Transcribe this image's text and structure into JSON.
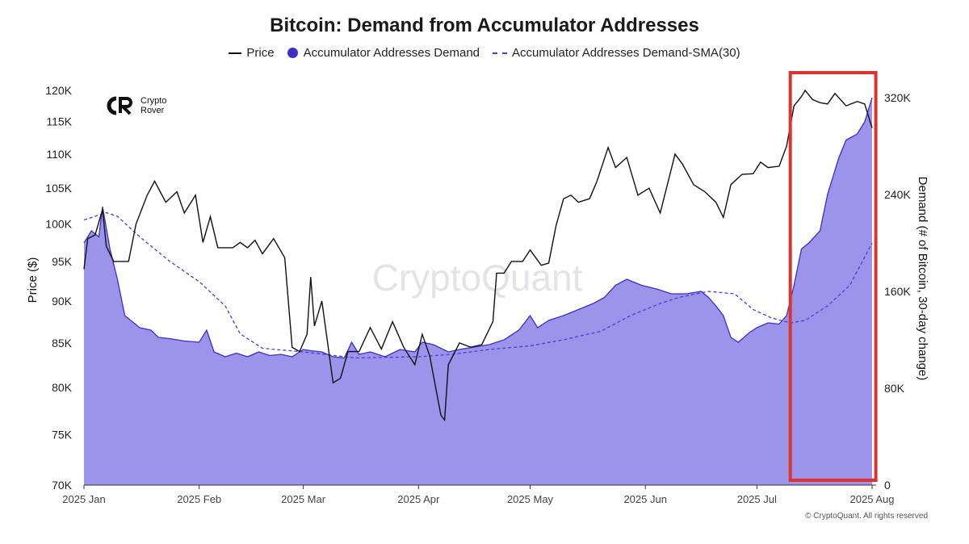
{
  "title": "Bitcoin: Demand from Accumulator Addresses",
  "logo": {
    "line1": "Crypto",
    "line2": "Rover",
    "icon": "cr-logo-icon"
  },
  "watermark": "CryptoQuant",
  "copyright": "© CryptoQuant. All rights reserved",
  "colors": {
    "price": "#111111",
    "demand_fill": "#9c93ea",
    "demand_line": "#3d2fc8",
    "sma": "#4a3fd0",
    "highlight": "#e0322b"
  },
  "chart_data": {
    "type": "area",
    "title": "Bitcoin: Demand from Accumulator Addresses",
    "legend_position": "top-center",
    "series": [
      {
        "name": "Price",
        "style": "line",
        "axis": "left"
      },
      {
        "name": "Accumulator Addresses Demand",
        "style": "area",
        "axis": "right"
      },
      {
        "name": "Accumulator Addresses Demand-SMA(30)",
        "style": "dashed line",
        "axis": "right"
      }
    ],
    "y_left": {
      "label": "Price ($)",
      "scale": "log",
      "range": [
        70000,
        123000
      ],
      "ticks": [
        "120K",
        "115K",
        "110K",
        "105K",
        "100K",
        "95K",
        "90K",
        "85K",
        "80K",
        "75K",
        "70K"
      ],
      "tick_values": [
        120000,
        115000,
        110000,
        105000,
        100000,
        95000,
        90000,
        85000,
        80000,
        75000,
        70000
      ]
    },
    "y_right": {
      "label": "Demand (# of Bitcoin, 30-day change)",
      "range": [
        0,
        320000
      ],
      "ticks": [
        "320K",
        "240K",
        "160K",
        "80K",
        "0"
      ],
      "tick_values": [
        320000,
        240000,
        160000,
        80000,
        0
      ]
    },
    "x_axis": {
      "range": [
        "2025-01-01",
        "2025-08-01"
      ],
      "ticks": [
        "2025 Jan",
        "2025 Feb",
        "2025 Mar",
        "2025 Apr",
        "2025 May",
        "2025 Jun",
        "2025 Jul",
        "2025 Aug"
      ],
      "tick_dates": [
        "2025-01-01",
        "2025-02-01",
        "2025-03-01",
        "2025-04-01",
        "2025-05-01",
        "2025-06-01",
        "2025-07-01",
        "2025-08-01"
      ]
    },
    "grid": false,
    "annotation": {
      "type": "highlight box",
      "date_range": [
        "2025-07-10",
        "2025-08-02"
      ]
    },
    "price": [
      [
        "2025-01-01",
        94000
      ],
      [
        "2025-01-02",
        98000
      ],
      [
        "2025-01-04",
        98500
      ],
      [
        "2025-01-06",
        102000
      ],
      [
        "2025-01-07",
        97000
      ],
      [
        "2025-01-09",
        95000
      ],
      [
        "2025-01-13",
        95000
      ],
      [
        "2025-01-15",
        100000
      ],
      [
        "2025-01-18",
        104000
      ],
      [
        "2025-01-20",
        106000
      ],
      [
        "2025-01-23",
        103000
      ],
      [
        "2025-01-26",
        104500
      ],
      [
        "2025-01-28",
        101500
      ],
      [
        "2025-01-31",
        104000
      ],
      [
        "2025-02-02",
        97500
      ],
      [
        "2025-02-04",
        101000
      ],
      [
        "2025-02-06",
        96800
      ],
      [
        "2025-02-10",
        96800
      ],
      [
        "2025-02-12",
        97500
      ],
      [
        "2025-02-14",
        96800
      ],
      [
        "2025-02-16",
        97800
      ],
      [
        "2025-02-18",
        96000
      ],
      [
        "2025-02-21",
        98000
      ],
      [
        "2025-02-24",
        95500
      ],
      [
        "2025-02-26",
        84500
      ],
      [
        "2025-02-28",
        84000
      ],
      [
        "2025-03-02",
        86000
      ],
      [
        "2025-03-03",
        93000
      ],
      [
        "2025-03-04",
        87000
      ],
      [
        "2025-03-06",
        90000
      ],
      [
        "2025-03-09",
        80500
      ],
      [
        "2025-03-11",
        81000
      ],
      [
        "2025-03-13",
        84000
      ],
      [
        "2025-03-16",
        84000
      ],
      [
        "2025-03-19",
        86800
      ],
      [
        "2025-03-22",
        84300
      ],
      [
        "2025-03-25",
        87500
      ],
      [
        "2025-03-28",
        84500
      ],
      [
        "2025-03-31",
        82500
      ],
      [
        "2025-04-02",
        86000
      ],
      [
        "2025-04-04",
        83500
      ],
      [
        "2025-04-07",
        77000
      ],
      [
        "2025-04-08",
        76500
      ],
      [
        "2025-04-09",
        82500
      ],
      [
        "2025-04-12",
        85000
      ],
      [
        "2025-04-15",
        84500
      ],
      [
        "2025-04-18",
        84800
      ],
      [
        "2025-04-21",
        87500
      ],
      [
        "2025-04-22",
        93500
      ],
      [
        "2025-04-24",
        93500
      ],
      [
        "2025-04-26",
        95000
      ],
      [
        "2025-04-29",
        95000
      ],
      [
        "2025-05-01",
        96500
      ],
      [
        "2025-05-04",
        94500
      ],
      [
        "2025-05-06",
        94800
      ],
      [
        "2025-05-08",
        99800
      ],
      [
        "2025-05-10",
        103500
      ],
      [
        "2025-05-12",
        104000
      ],
      [
        "2025-05-14",
        103000
      ],
      [
        "2025-05-17",
        103500
      ],
      [
        "2025-05-19",
        106000
      ],
      [
        "2025-05-22",
        111000
      ],
      [
        "2025-05-24",
        108000
      ],
      [
        "2025-05-27",
        109500
      ],
      [
        "2025-05-30",
        104000
      ],
      [
        "2025-06-02",
        105000
      ],
      [
        "2025-06-05",
        101500
      ],
      [
        "2025-06-09",
        110000
      ],
      [
        "2025-06-11",
        108500
      ],
      [
        "2025-06-14",
        105500
      ],
      [
        "2025-06-17",
        104500
      ],
      [
        "2025-06-20",
        103000
      ],
      [
        "2025-06-22",
        100900
      ],
      [
        "2025-06-24",
        105500
      ],
      [
        "2025-06-27",
        107000
      ],
      [
        "2025-06-30",
        107100
      ],
      [
        "2025-07-02",
        108800
      ],
      [
        "2025-07-04",
        108000
      ],
      [
        "2025-07-07",
        108200
      ],
      [
        "2025-07-09",
        111200
      ],
      [
        "2025-07-11",
        117500
      ],
      [
        "2025-07-13",
        119000
      ],
      [
        "2025-07-14",
        120000
      ],
      [
        "2025-07-16",
        118500
      ],
      [
        "2025-07-18",
        118000
      ],
      [
        "2025-07-20",
        117800
      ],
      [
        "2025-07-22",
        119500
      ],
      [
        "2025-07-25",
        117500
      ],
      [
        "2025-07-28",
        118200
      ],
      [
        "2025-07-30",
        117800
      ],
      [
        "2025-08-01",
        114000
      ]
    ],
    "demand": [
      [
        "2025-01-01",
        200000
      ],
      [
        "2025-01-03",
        210000
      ],
      [
        "2025-01-05",
        205000
      ],
      [
        "2025-01-06",
        230000
      ],
      [
        "2025-01-08",
        195000
      ],
      [
        "2025-01-10",
        170000
      ],
      [
        "2025-01-12",
        140000
      ],
      [
        "2025-01-14",
        135000
      ],
      [
        "2025-01-16",
        130000
      ],
      [
        "2025-01-19",
        128000
      ],
      [
        "2025-01-21",
        122000
      ],
      [
        "2025-01-24",
        121000
      ],
      [
        "2025-01-28",
        119000
      ],
      [
        "2025-02-01",
        118000
      ],
      [
        "2025-02-03",
        128000
      ],
      [
        "2025-02-05",
        110000
      ],
      [
        "2025-02-08",
        106000
      ],
      [
        "2025-02-11",
        109000
      ],
      [
        "2025-02-14",
        106000
      ],
      [
        "2025-02-17",
        110000
      ],
      [
        "2025-02-20",
        107000
      ],
      [
        "2025-02-23",
        108000
      ],
      [
        "2025-02-26",
        106000
      ],
      [
        "2025-03-01",
        112000
      ],
      [
        "2025-03-03",
        111000
      ],
      [
        "2025-03-06",
        110000
      ],
      [
        "2025-03-09",
        106000
      ],
      [
        "2025-03-12",
        105000
      ],
      [
        "2025-03-14",
        118000
      ],
      [
        "2025-03-16",
        108000
      ],
      [
        "2025-03-19",
        110000
      ],
      [
        "2025-03-23",
        106000
      ],
      [
        "2025-03-27",
        112000
      ],
      [
        "2025-03-31",
        110000
      ],
      [
        "2025-04-02",
        118000
      ],
      [
        "2025-04-05",
        116000
      ],
      [
        "2025-04-09",
        110000
      ],
      [
        "2025-04-12",
        112000
      ],
      [
        "2025-04-16",
        114000
      ],
      [
        "2025-04-20",
        116000
      ],
      [
        "2025-04-24",
        120000
      ],
      [
        "2025-04-28",
        128000
      ],
      [
        "2025-05-01",
        140000
      ],
      [
        "2025-05-03",
        130000
      ],
      [
        "2025-05-06",
        136000
      ],
      [
        "2025-05-10",
        140000
      ],
      [
        "2025-05-14",
        145000
      ],
      [
        "2025-05-18",
        150000
      ],
      [
        "2025-05-21",
        155000
      ],
      [
        "2025-05-24",
        165000
      ],
      [
        "2025-05-27",
        170000
      ],
      [
        "2025-05-31",
        165000
      ],
      [
        "2025-06-04",
        162000
      ],
      [
        "2025-06-08",
        158000
      ],
      [
        "2025-06-12",
        158000
      ],
      [
        "2025-06-16",
        160000
      ],
      [
        "2025-06-18",
        155000
      ],
      [
        "2025-06-20",
        148000
      ],
      [
        "2025-06-22",
        140000
      ],
      [
        "2025-06-24",
        122000
      ],
      [
        "2025-06-26",
        118000
      ],
      [
        "2025-06-29",
        126000
      ],
      [
        "2025-07-01",
        130000
      ],
      [
        "2025-07-04",
        134000
      ],
      [
        "2025-07-07",
        133000
      ],
      [
        "2025-07-09",
        140000
      ],
      [
        "2025-07-11",
        165000
      ],
      [
        "2025-07-13",
        195000
      ],
      [
        "2025-07-15",
        200000
      ],
      [
        "2025-07-18",
        210000
      ],
      [
        "2025-07-20",
        240000
      ],
      [
        "2025-07-23",
        270000
      ],
      [
        "2025-07-25",
        285000
      ],
      [
        "2025-07-28",
        290000
      ],
      [
        "2025-07-30",
        300000
      ],
      [
        "2025-08-01",
        320000
      ]
    ],
    "demand_sma30": [
      [
        "2025-01-01",
        219000
      ],
      [
        "2025-01-07",
        225000
      ],
      [
        "2025-01-10",
        222000
      ],
      [
        "2025-01-16",
        205000
      ],
      [
        "2025-01-24",
        185000
      ],
      [
        "2025-02-01",
        168000
      ],
      [
        "2025-02-08",
        148000
      ],
      [
        "2025-02-12",
        125000
      ],
      [
        "2025-02-18",
        113000
      ],
      [
        "2025-03-01",
        110000
      ],
      [
        "2025-03-15",
        105000
      ],
      [
        "2025-04-01",
        106000
      ],
      [
        "2025-04-10",
        108000
      ],
      [
        "2025-04-20",
        112000
      ],
      [
        "2025-05-01",
        115000
      ],
      [
        "2025-05-10",
        120000
      ],
      [
        "2025-05-20",
        127000
      ],
      [
        "2025-05-28",
        140000
      ],
      [
        "2025-06-05",
        150000
      ],
      [
        "2025-06-10",
        155000
      ],
      [
        "2025-06-18",
        160000
      ],
      [
        "2025-06-25",
        158000
      ],
      [
        "2025-06-30",
        145000
      ],
      [
        "2025-07-05",
        138000
      ],
      [
        "2025-07-10",
        134000
      ],
      [
        "2025-07-14",
        136000
      ],
      [
        "2025-07-20",
        148000
      ],
      [
        "2025-07-26",
        165000
      ],
      [
        "2025-08-01",
        200000
      ]
    ]
  }
}
